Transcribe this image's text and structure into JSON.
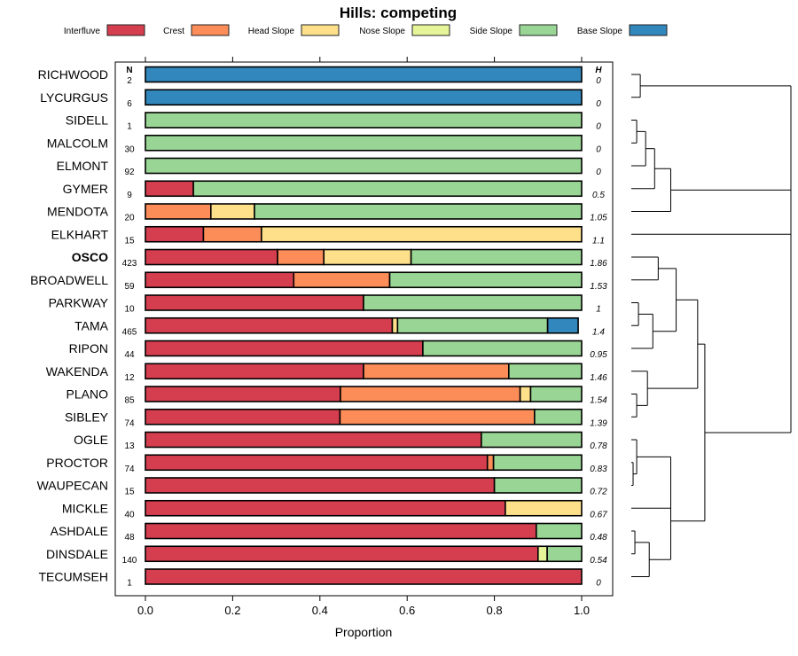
{
  "chart_data": {
    "type": "bar",
    "orientation": "horizontal-stacked",
    "title": "Hills: competing",
    "xlabel": "Proportion",
    "ylabel": "",
    "xlim": [
      0,
      1
    ],
    "x_ticks": [
      0.0,
      0.2,
      0.4,
      0.6,
      0.8,
      1.0
    ],
    "x_tick_labels": [
      "0.0",
      "0.2",
      "0.4",
      "0.6",
      "0.8",
      "1.0"
    ],
    "legend_placement": "top",
    "n_header": "N",
    "h_header": "H",
    "legend": [
      {
        "name": "Interfluve",
        "color": "#D53E4F"
      },
      {
        "name": "Crest",
        "color": "#FC8D59"
      },
      {
        "name": "Head Slope",
        "color": "#FEE08B"
      },
      {
        "name": "Nose Slope",
        "color": "#E6F598"
      },
      {
        "name": "Side Slope",
        "color": "#99D594"
      },
      {
        "name": "Base Slope",
        "color": "#3288BD"
      }
    ],
    "series_order": [
      "Interfluve",
      "Crest",
      "Head Slope",
      "Nose Slope",
      "Side Slope",
      "Base Slope"
    ],
    "rows": [
      {
        "name": "RICHWOOD",
        "bold": false,
        "n": "2",
        "h": "0",
        "values": [
          0,
          0,
          0,
          0,
          0,
          1.0
        ]
      },
      {
        "name": "LYCURGUS",
        "bold": false,
        "n": "6",
        "h": "0",
        "values": [
          0,
          0,
          0,
          0,
          0,
          1.0
        ]
      },
      {
        "name": "SIDELL",
        "bold": false,
        "n": "1",
        "h": "0",
        "values": [
          0,
          0,
          0,
          0,
          1.0,
          0
        ]
      },
      {
        "name": "MALCOLM",
        "bold": false,
        "n": "30",
        "h": "0",
        "values": [
          0,
          0,
          0,
          0,
          1.0,
          0
        ]
      },
      {
        "name": "ELMONT",
        "bold": false,
        "n": "92",
        "h": "0",
        "values": [
          0,
          0,
          0,
          0,
          1.0,
          0
        ]
      },
      {
        "name": "GYMER",
        "bold": false,
        "n": "9",
        "h": "0.5",
        "values": [
          0.11,
          0,
          0,
          0,
          0.89,
          0
        ]
      },
      {
        "name": "MENDOTA",
        "bold": false,
        "n": "20",
        "h": "1.05",
        "values": [
          0,
          0.15,
          0.1,
          0,
          0.75,
          0
        ]
      },
      {
        "name": "ELKHART",
        "bold": false,
        "n": "15",
        "h": "1.1",
        "values": [
          0.133,
          0.133,
          0.734,
          0,
          0,
          0
        ]
      },
      {
        "name": "OSCO",
        "bold": true,
        "n": "423",
        "h": "1.86",
        "values": [
          0.303,
          0.106,
          0.2,
          0,
          0.391,
          0
        ]
      },
      {
        "name": "BROADWELL",
        "bold": false,
        "n": "59",
        "h": "1.53",
        "values": [
          0.34,
          0.22,
          0,
          0,
          0.44,
          0
        ]
      },
      {
        "name": "PARKWAY",
        "bold": false,
        "n": "10",
        "h": "1",
        "values": [
          0.5,
          0,
          0,
          0,
          0.5,
          0
        ]
      },
      {
        "name": "TAMA",
        "bold": false,
        "n": "465",
        "h": "1.4",
        "values": [
          0.566,
          0,
          0.012,
          0,
          0.344,
          0.07
        ]
      },
      {
        "name": "RIPON",
        "bold": false,
        "n": "44",
        "h": "0.95",
        "values": [
          0.636,
          0,
          0,
          0,
          0.364,
          0
        ]
      },
      {
        "name": "WAKENDA",
        "bold": false,
        "n": "12",
        "h": "1.46",
        "values": [
          0.5,
          0.333,
          0,
          0,
          0.167,
          0
        ]
      },
      {
        "name": "PLANO",
        "bold": false,
        "n": "85",
        "h": "1.54",
        "values": [
          0.447,
          0.412,
          0.024,
          0,
          0.117,
          0
        ]
      },
      {
        "name": "SIBLEY",
        "bold": false,
        "n": "74",
        "h": "1.39",
        "values": [
          0.446,
          0.446,
          0,
          0,
          0.108,
          0
        ]
      },
      {
        "name": "OGLE",
        "bold": false,
        "n": "13",
        "h": "0.78",
        "values": [
          0.77,
          0,
          0,
          0,
          0.23,
          0
        ]
      },
      {
        "name": "PROCTOR",
        "bold": false,
        "n": "74",
        "h": "0.83",
        "values": [
          0.784,
          0.014,
          0,
          0,
          0.202,
          0
        ]
      },
      {
        "name": "WAUPECAN",
        "bold": false,
        "n": "15",
        "h": "0.72",
        "values": [
          0.8,
          0,
          0,
          0,
          0.2,
          0
        ]
      },
      {
        "name": "MICKLE",
        "bold": false,
        "n": "40",
        "h": "0.67",
        "values": [
          0.825,
          0,
          0.175,
          0,
          0,
          0
        ]
      },
      {
        "name": "ASHDALE",
        "bold": false,
        "n": "48",
        "h": "0.48",
        "values": [
          0.896,
          0,
          0,
          0,
          0.104,
          0
        ]
      },
      {
        "name": "DINSDALE",
        "bold": false,
        "n": "140",
        "h": "0.54",
        "values": [
          0.9,
          0,
          0,
          0.021,
          0.079,
          0
        ]
      },
      {
        "name": "TECUMSEH",
        "bold": false,
        "n": "1",
        "h": "0",
        "values": [
          1.0,
          0,
          0,
          0,
          0,
          0
        ]
      }
    ],
    "dendrogram": {
      "description": "hierarchical clustering of rows (shown at right)",
      "merges": [
        {
          "id": "A",
          "left": "RICHWOOD",
          "right": "LYCURGUS",
          "height": 0.05
        },
        {
          "id": "B",
          "left": "SIDELL",
          "right": "MALCOLM",
          "height": 0.03
        },
        {
          "id": "C",
          "left": "B",
          "right": "ELMONT",
          "height": 0.08
        },
        {
          "id": "D",
          "left": "C",
          "right": "GYMER",
          "height": 0.13
        },
        {
          "id": "E",
          "left": "D",
          "right": "MENDOTA",
          "height": 0.22
        },
        {
          "id": "F",
          "left": "OSCO",
          "right": "BROADWELL",
          "height": 0.15
        },
        {
          "id": "G",
          "left": "PARKWAY",
          "right": "TAMA",
          "height": 0.04
        },
        {
          "id": "H",
          "left": "G",
          "right": "RIPON",
          "height": 0.12
        },
        {
          "id": "I",
          "left": "F",
          "right": "H",
          "height": 0.25
        },
        {
          "id": "J",
          "left": "PLANO",
          "right": "SIBLEY",
          "height": 0.03
        },
        {
          "id": "K",
          "left": "WAKENDA",
          "right": "J",
          "height": 0.09
        },
        {
          "id": "L",
          "left": "I",
          "right": "K",
          "height": 0.37
        },
        {
          "id": "M",
          "left": "PROCTOR",
          "right": "WAUPECAN",
          "height": 0.01
        },
        {
          "id": "N",
          "left": "OGLE",
          "right": "M",
          "height": 0.03
        },
        {
          "id": "O",
          "left": "ASHDALE",
          "right": "DINSDALE",
          "height": 0.02
        },
        {
          "id": "P",
          "left": "O",
          "right": "TECUMSEH",
          "height": 0.1
        },
        {
          "id": "Q",
          "left": "N",
          "right": "MICKLE",
          "height": 0.22
        },
        {
          "id": "R",
          "left": "Q",
          "right": "P",
          "height": 0.22
        },
        {
          "id": "S",
          "left": "L",
          "right": "R",
          "height": 0.41
        },
        {
          "id": "T",
          "left": "E",
          "right": "ELKHART",
          "height": 0.89
        },
        {
          "id": "U",
          "left": "A",
          "right": "T",
          "height": 0.89
        },
        {
          "id": "V",
          "left": "U",
          "right": "S",
          "height": 0.89
        }
      ]
    }
  }
}
